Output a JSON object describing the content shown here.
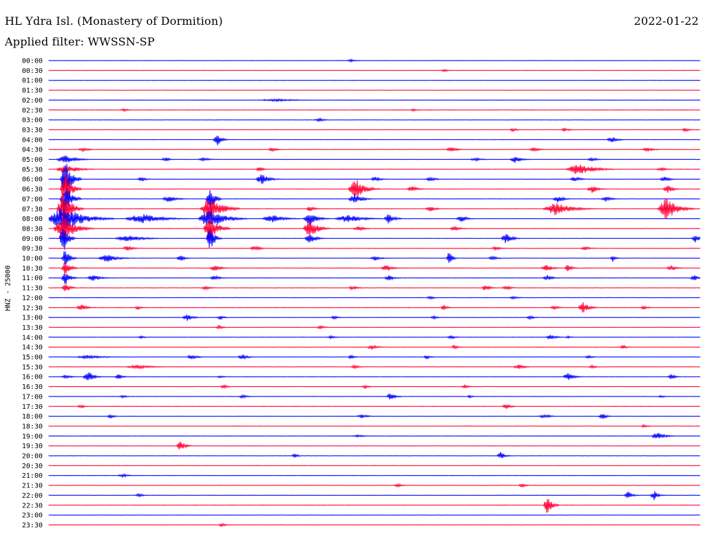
{
  "header": {
    "station": "HL Ydra Isl. (Monastery of Dormition)",
    "date": "2022-01-22",
    "filter": "Applied filter: WWSSN-SP",
    "y_axis_label": "HNZ - 25000"
  },
  "colors": {
    "blue": "#0000ff",
    "red": "#ff0033"
  },
  "rows": [
    {
      "time": "00:00",
      "color": "blue",
      "events": [
        [
          510,
          2,
          8
        ]
      ]
    },
    {
      "time": "00:30",
      "color": "red",
      "events": [
        [
          645,
          2,
          6
        ]
      ]
    },
    {
      "time": "01:00",
      "color": "blue",
      "events": []
    },
    {
      "time": "01:30",
      "color": "red",
      "events": []
    },
    {
      "time": "02:00",
      "color": "blue",
      "events": [
        [
          400,
          2,
          30
        ]
      ]
    },
    {
      "time": "02:30",
      "color": "red",
      "events": [
        [
          180,
          2,
          8
        ],
        [
          600,
          2,
          6
        ]
      ]
    },
    {
      "time": "03:00",
      "color": "blue",
      "events": [
        [
          463,
          3,
          8
        ]
      ]
    },
    {
      "time": "03:30",
      "color": "red",
      "events": [
        [
          745,
          3,
          6
        ],
        [
          820,
          3,
          6
        ],
        [
          995,
          3,
          6
        ]
      ]
    },
    {
      "time": "04:00",
      "color": "blue",
      "events": [
        [
          315,
          10,
          6
        ],
        [
          888,
          5,
          8
        ]
      ]
    },
    {
      "time": "04:30",
      "color": "red",
      "events": [
        [
          120,
          3,
          8
        ],
        [
          395,
          3,
          8
        ],
        [
          655,
          4,
          8
        ],
        [
          775,
          3,
          8
        ],
        [
          940,
          3,
          10
        ]
      ]
    },
    {
      "time": "05:00",
      "color": "blue",
      "events": [
        [
          95,
          6,
          15
        ],
        [
          240,
          3,
          8
        ],
        [
          295,
          3,
          8
        ],
        [
          690,
          3,
          8
        ],
        [
          748,
          6,
          8
        ],
        [
          860,
          3,
          8
        ]
      ]
    },
    {
      "time": "05:30",
      "color": "red",
      "events": [
        [
          95,
          8,
          15
        ],
        [
          377,
          4,
          6
        ],
        [
          840,
          9,
          20
        ],
        [
          960,
          3,
          8
        ]
      ]
    },
    {
      "time": "06:00",
      "color": "blue",
      "events": [
        [
          95,
          30,
          8
        ],
        [
          205,
          4,
          6
        ],
        [
          380,
          8,
          10
        ],
        [
          545,
          4,
          8
        ],
        [
          625,
          4,
          8
        ],
        [
          835,
          4,
          8
        ],
        [
          965,
          4,
          8
        ]
      ]
    },
    {
      "time": "06:30",
      "color": "red",
      "events": [
        [
          95,
          25,
          8
        ],
        [
          517,
          16,
          12
        ],
        [
          598,
          5,
          8
        ],
        [
          860,
          6,
          8
        ],
        [
          970,
          6,
          8
        ]
      ]
    },
    {
      "time": "07:00",
      "color": "blue",
      "events": [
        [
          95,
          25,
          8
        ],
        [
          245,
          5,
          10
        ],
        [
          305,
          20,
          6
        ],
        [
          515,
          8,
          10
        ],
        [
          810,
          5,
          8
        ],
        [
          880,
          4,
          8
        ]
      ]
    },
    {
      "time": "07:30",
      "color": "red",
      "events": [
        [
          92,
          30,
          10
        ],
        [
          305,
          20,
          15
        ],
        [
          450,
          5,
          6
        ],
        [
          625,
          4,
          8
        ],
        [
          807,
          10,
          20
        ],
        [
          968,
          18,
          14
        ]
      ]
    },
    {
      "time": "08:00",
      "color": "blue",
      "events": [
        [
          92,
          20,
          25
        ],
        [
          205,
          8,
          25
        ],
        [
          305,
          16,
          18
        ],
        [
          395,
          6,
          16
        ],
        [
          450,
          10,
          10
        ],
        [
          505,
          6,
          20
        ],
        [
          565,
          8,
          8
        ],
        [
          670,
          5,
          8
        ]
      ]
    },
    {
      "time": "08:30",
      "color": "red",
      "events": [
        [
          92,
          20,
          15
        ],
        [
          305,
          20,
          10
        ],
        [
          450,
          15,
          10
        ],
        [
          520,
          4,
          8
        ],
        [
          660,
          4,
          8
        ]
      ]
    },
    {
      "time": "09:00",
      "color": "blue",
      "events": [
        [
          92,
          25,
          6
        ],
        [
          185,
          5,
          20
        ],
        [
          305,
          20,
          6
        ],
        [
          450,
          8,
          8
        ],
        [
          735,
          8,
          8
        ],
        [
          1010,
          6,
          6
        ]
      ]
    },
    {
      "time": "09:30",
      "color": "red",
      "events": [
        [
          185,
          4,
          8
        ],
        [
          370,
          4,
          8
        ],
        [
          720,
          3,
          8
        ],
        [
          850,
          3,
          8
        ]
      ]
    },
    {
      "time": "10:00",
      "color": "blue",
      "events": [
        [
          95,
          15,
          6
        ],
        [
          155,
          6,
          14
        ],
        [
          262,
          5,
          6
        ],
        [
          545,
          4,
          8
        ],
        [
          652,
          12,
          4
        ],
        [
          715,
          3,
          8
        ],
        [
          890,
          5,
          4
        ]
      ]
    },
    {
      "time": "10:30",
      "color": "red",
      "events": [
        [
          95,
          15,
          6
        ],
        [
          312,
          5,
          8
        ],
        [
          560,
          6,
          8
        ],
        [
          793,
          6,
          8
        ],
        [
          825,
          6,
          6
        ],
        [
          975,
          4,
          8
        ]
      ]
    },
    {
      "time": "11:00",
      "color": "blue",
      "events": [
        [
          95,
          12,
          6
        ],
        [
          135,
          5,
          10
        ],
        [
          312,
          4,
          8
        ],
        [
          565,
          4,
          8
        ],
        [
          795,
          4,
          8
        ],
        [
          1008,
          5,
          6
        ]
      ]
    },
    {
      "time": "11:30",
      "color": "red",
      "events": [
        [
          95,
          8,
          6
        ],
        [
          298,
          3,
          8
        ],
        [
          512,
          3,
          8
        ],
        [
          705,
          5,
          6
        ],
        [
          735,
          4,
          6
        ]
      ]
    },
    {
      "time": "12:00",
      "color": "blue",
      "events": [
        [
          625,
          3,
          6
        ],
        [
          745,
          3,
          6
        ]
      ]
    },
    {
      "time": "12:30",
      "color": "red",
      "events": [
        [
          118,
          5,
          8
        ],
        [
          200,
          3,
          6
        ],
        [
          645,
          4,
          6
        ],
        [
          805,
          4,
          6
        ],
        [
          847,
          8,
          8
        ],
        [
          935,
          3,
          6
        ]
      ]
    },
    {
      "time": "13:00",
      "color": "blue",
      "events": [
        [
          272,
          5,
          8
        ],
        [
          320,
          3,
          6
        ],
        [
          485,
          3,
          6
        ],
        [
          630,
          3,
          6
        ],
        [
          770,
          3,
          6
        ]
      ]
    },
    {
      "time": "13:30",
      "color": "red",
      "events": [
        [
          318,
          3,
          6
        ],
        [
          465,
          3,
          6
        ]
      ]
    },
    {
      "time": "14:00",
      "color": "blue",
      "events": [
        [
          205,
          2,
          6
        ],
        [
          480,
          3,
          6
        ],
        [
          655,
          3,
          6
        ],
        [
          800,
          4,
          8
        ],
        [
          825,
          2,
          6
        ]
      ]
    },
    {
      "time": "14:30",
      "color": "red",
      "events": [
        [
          540,
          4,
          8
        ],
        [
          660,
          3,
          6
        ],
        [
          905,
          3,
          6
        ]
      ]
    },
    {
      "time": "15:00",
      "color": "blue",
      "events": [
        [
          128,
          3,
          20
        ],
        [
          278,
          4,
          8
        ],
        [
          352,
          4,
          8
        ],
        [
          510,
          3,
          6
        ],
        [
          620,
          3,
          6
        ],
        [
          855,
          3,
          6
        ]
      ]
    },
    {
      "time": "15:30",
      "color": "red",
      "events": [
        [
          200,
          3,
          20
        ],
        [
          515,
          3,
          6
        ],
        [
          753,
          4,
          8
        ],
        [
          860,
          3,
          6
        ]
      ]
    },
    {
      "time": "16:00",
      "color": "blue",
      "events": [
        [
          95,
          3,
          8
        ],
        [
          128,
          9,
          8
        ],
        [
          172,
          4,
          6
        ],
        [
          320,
          2,
          6
        ],
        [
          825,
          6,
          8
        ],
        [
          975,
          4,
          6
        ]
      ]
    },
    {
      "time": "16:30",
      "color": "red",
      "events": [
        [
          325,
          3,
          6
        ],
        [
          530,
          3,
          6
        ],
        [
          675,
          3,
          6
        ]
      ]
    },
    {
      "time": "17:00",
      "color": "blue",
      "events": [
        [
          178,
          2,
          6
        ],
        [
          352,
          3,
          6
        ],
        [
          567,
          7,
          6
        ],
        [
          682,
          2,
          6
        ],
        [
          960,
          2,
          6
        ]
      ]
    },
    {
      "time": "17:30",
      "color": "red",
      "events": [
        [
          117,
          3,
          6
        ],
        [
          735,
          5,
          6
        ]
      ]
    },
    {
      "time": "18:00",
      "color": "blue",
      "events": [
        [
          160,
          3,
          6
        ],
        [
          525,
          3,
          8
        ],
        [
          790,
          3,
          10
        ],
        [
          875,
          5,
          6
        ]
      ]
    },
    {
      "time": "18:30",
      "color": "red",
      "events": [
        [
          935,
          2,
          6
        ]
      ]
    },
    {
      "time": "19:00",
      "color": "blue",
      "events": [
        [
          520,
          2,
          10
        ],
        [
          955,
          6,
          10
        ]
      ]
    },
    {
      "time": "19:30",
      "color": "red",
      "events": [
        [
          262,
          9,
          6
        ]
      ]
    },
    {
      "time": "20:00",
      "color": "blue",
      "events": [
        [
          428,
          3,
          6
        ],
        [
          727,
          6,
          6
        ]
      ]
    },
    {
      "time": "20:30",
      "color": "red",
      "events": []
    },
    {
      "time": "21:00",
      "color": "blue",
      "events": [
        [
          178,
          3,
          8
        ]
      ]
    },
    {
      "time": "21:30",
      "color": "red",
      "events": [
        [
          577,
          3,
          6
        ],
        [
          758,
          3,
          6
        ]
      ]
    },
    {
      "time": "22:00",
      "color": "blue",
      "events": [
        [
          202,
          3,
          6
        ],
        [
          912,
          6,
          6
        ],
        [
          950,
          7,
          6
        ]
      ]
    },
    {
      "time": "22:30",
      "color": "red",
      "events": [
        [
          795,
          15,
          6
        ]
      ]
    },
    {
      "time": "23:00",
      "color": "blue",
      "events": []
    },
    {
      "time": "23:30",
      "color": "red",
      "events": [
        [
          322,
          3,
          6
        ]
      ]
    }
  ]
}
